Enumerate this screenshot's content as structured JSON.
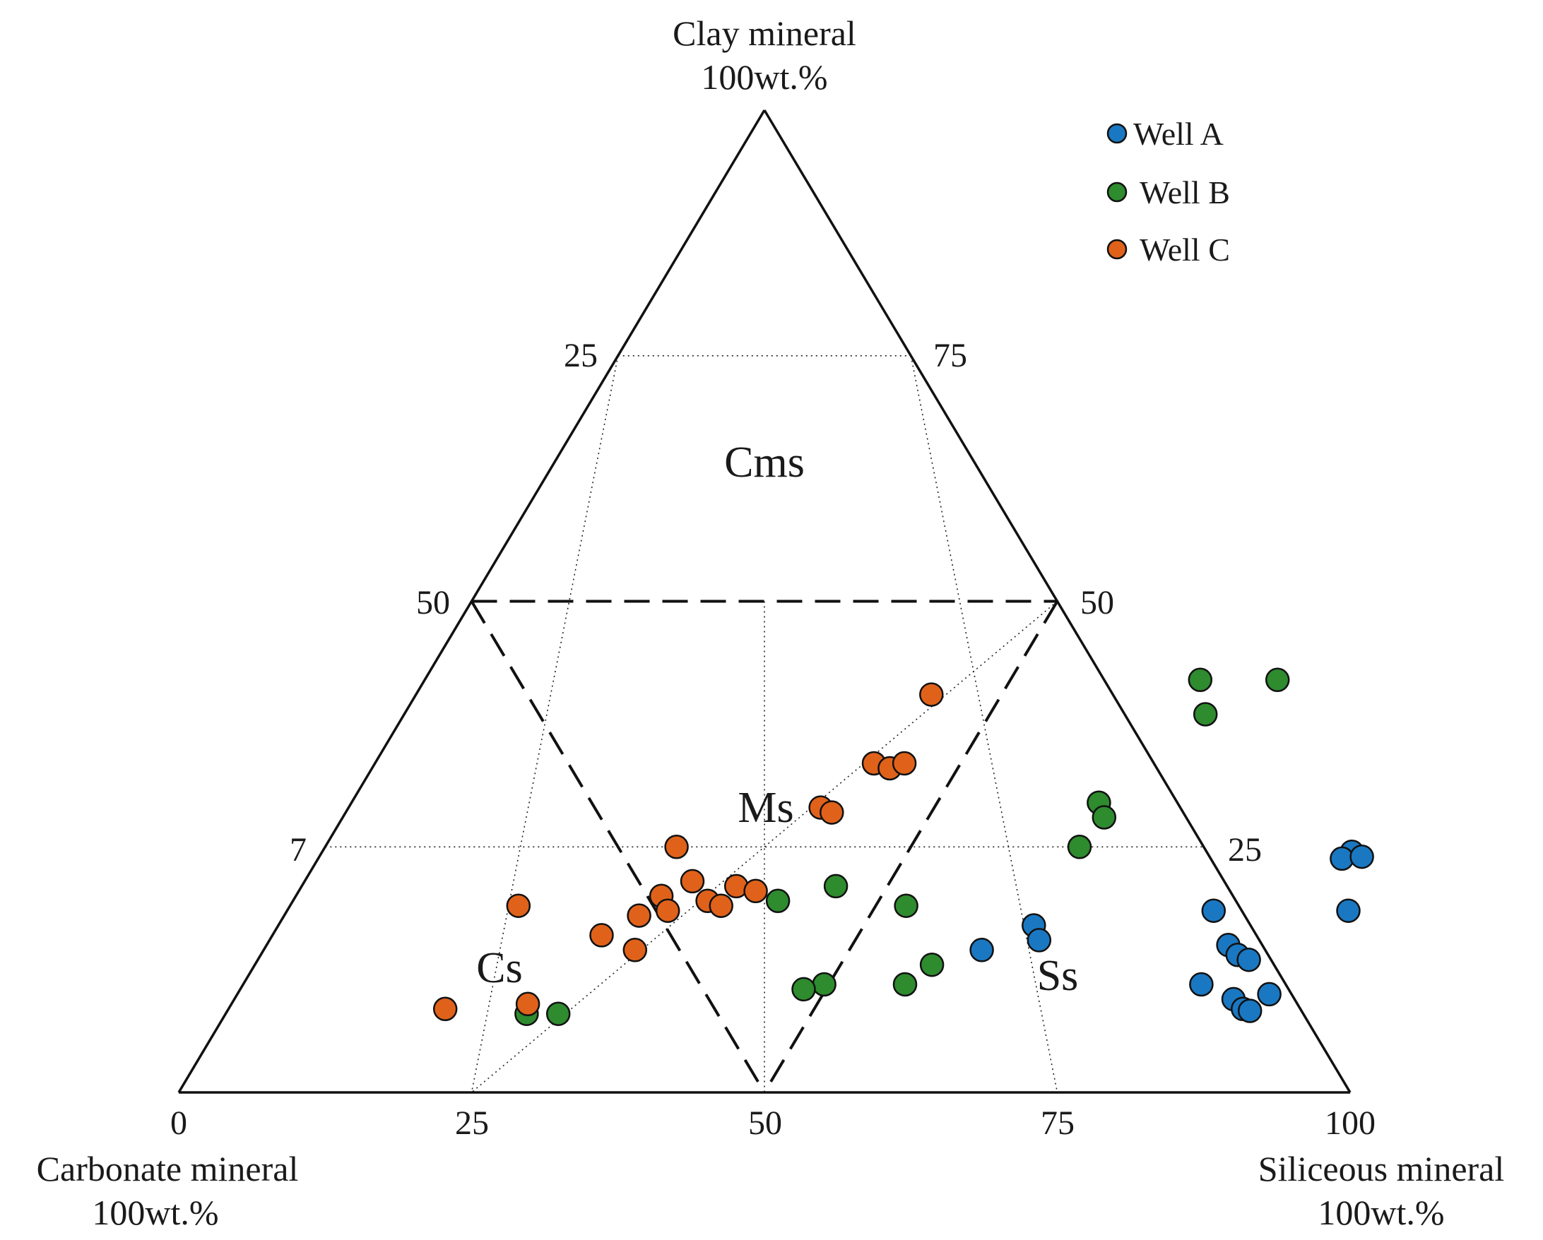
{
  "chart_data": {
    "type": "scatter",
    "subtype": "ternary",
    "vertices": {
      "top": {
        "label": "Clay mineral",
        "sublabel": "100wt.%"
      },
      "left": {
        "label": "Carbonate mineral",
        "sublabel": "100wt.%"
      },
      "right": {
        "label": "Siliceous mineral",
        "sublabel": "100wt.%"
      }
    },
    "ticks": {
      "bottom": [
        "0",
        "25",
        "50",
        "75",
        "100"
      ],
      "left": [
        "25",
        "50",
        "7"
      ],
      "right": [
        "75",
        "50",
        "25"
      ]
    },
    "regions": [
      "Cms",
      "Ms",
      "Cs",
      "Ss"
    ],
    "legend_position": "top-right",
    "colors": {
      "Well A": "#1a78c2",
      "Well B": "#2e8b2e",
      "Well C": "#e0621a",
      "axis": "#111111"
    },
    "series": [
      {
        "name": "Well A",
        "points": [
          {
            "siliceous": 64.5,
            "clay": 17.0
          },
          {
            "siliceous": 65.7,
            "clay": 15.5
          },
          {
            "siliceous": 61.3,
            "clay": 14.5
          },
          {
            "siliceous": 79.1,
            "clay": 18.5
          },
          {
            "siliceous": 82.1,
            "clay": 15.0
          },
          {
            "siliceous": 83.4,
            "clay": 14.0
          },
          {
            "siliceous": 84.6,
            "clay": 13.5
          },
          {
            "siliceous": 81.8,
            "clay": 11.0
          },
          {
            "siliceous": 85.3,
            "clay": 9.5
          },
          {
            "siliceous": 86.6,
            "clay": 8.5
          },
          {
            "siliceous": 87.3,
            "clay": 8.3
          },
          {
            "siliceous": 88.1,
            "clay": 10.0
          },
          {
            "siliceous": 87.9,
            "clay": 24.5
          },
          {
            "siliceous": 87.4,
            "clay": 23.8
          },
          {
            "siliceous": 89.0,
            "clay": 24.0
          },
          {
            "siliceous": 90.6,
            "clay": 18.5
          }
        ]
      },
      {
        "name": "Well B",
        "points": [
          {
            "siliceous": 66.2,
            "clay": 42.0
          },
          {
            "siliceous": 72.8,
            "clay": 42.0
          },
          {
            "siliceous": 68.4,
            "clay": 38.5
          },
          {
            "siliceous": 63.8,
            "clay": 29.5
          },
          {
            "siliceous": 65.0,
            "clay": 28.0
          },
          {
            "siliceous": 64.4,
            "clay": 25.0
          },
          {
            "siliceous": 52.6,
            "clay": 19.0
          },
          {
            "siliceous": 45.6,
            "clay": 21.0
          },
          {
            "siliceous": 41.4,
            "clay": 19.5
          },
          {
            "siliceous": 57.8,
            "clay": 13.0
          },
          {
            "siliceous": 56.5,
            "clay": 11.0
          },
          {
            "siliceous": 49.6,
            "clay": 11.0
          },
          {
            "siliceous": 48.1,
            "clay": 10.5
          },
          {
            "siliceous": 25.7,
            "clay": 8.0
          },
          {
            "siliceous": 28.4,
            "clay": 8.0
          }
        ]
      },
      {
        "name": "Well C",
        "points": [
          {
            "siliceous": 44.0,
            "clay": 40.5
          },
          {
            "siliceous": 42.6,
            "clay": 33.5
          },
          {
            "siliceous": 44.2,
            "clay": 33.0
          },
          {
            "siliceous": 45.2,
            "clay": 33.5
          },
          {
            "siliceous": 40.3,
            "clay": 29.0
          },
          {
            "siliceous": 41.5,
            "clay": 28.5
          },
          {
            "siliceous": 30.0,
            "clay": 25.0
          },
          {
            "siliceous": 33.1,
            "clay": 21.5
          },
          {
            "siliceous": 37.1,
            "clay": 21.0
          },
          {
            "siliceous": 35.4,
            "clay": 19.5
          },
          {
            "siliceous": 31.2,
            "clay": 20.0
          },
          {
            "siliceous": 30.3,
            "clay": 18.0
          },
          {
            "siliceous": 32.5,
            "clay": 18.5
          },
          {
            "siliceous": 19.5,
            "clay": 19.0
          },
          {
            "siliceous": 28.1,
            "clay": 16.0
          },
          {
            "siliceous": 31.7,
            "clay": 14.5
          },
          {
            "siliceous": 39.0,
            "clay": 20.5
          },
          {
            "siliceous": 36.8,
            "clay": 19.0
          },
          {
            "siliceous": 18.5,
            "clay": 8.5
          },
          {
            "siliceous": 25.3,
            "clay": 9.0
          }
        ]
      }
    ]
  }
}
